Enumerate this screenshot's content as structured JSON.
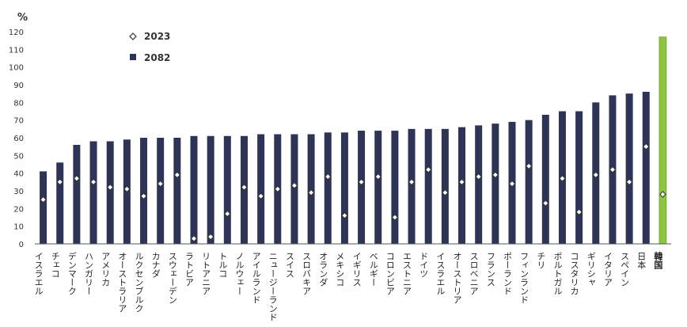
{
  "chart_data": {
    "type": "bar",
    "ylabel": "%",
    "ylim": [
      0,
      120
    ],
    "yticks": [
      0,
      10,
      20,
      30,
      40,
      50,
      60,
      70,
      80,
      90,
      100,
      110,
      120
    ],
    "ytick_labels": [
      "0",
      "10",
      "20",
      "30",
      "40",
      "50",
      "60",
      "70",
      "80",
      "90",
      "100",
      "110",
      "120"
    ],
    "grid": false,
    "legend_position": "top-left",
    "legend": [
      {
        "label": "2023",
        "marker": "diamond"
      },
      {
        "label": "2082",
        "marker": "square"
      }
    ],
    "categories": [
      "イスラエル",
      "チェコ",
      "デンマーク",
      "ハンガリー",
      "アメリカ",
      "オーストラリア",
      "ルクセンブルク",
      "カナダ",
      "スウェーデン",
      "ラトビア",
      "リトアニア",
      "トルコ",
      "ノルウェー",
      "アイルランド",
      "ニュージーランド",
      "スイス",
      "スロバキア",
      "オランダ",
      "メキシコ",
      "イギリス",
      "ベルギー",
      "コロンビア",
      "エストニア",
      "ドイツ",
      "イスラエル",
      "オーストリア",
      "スロベニア",
      "フランス",
      "ポーランド",
      "フィンランド",
      "チリ",
      "ポルトガル",
      "コスタリカ",
      "ギリシャ",
      "イタリア",
      "スペイン",
      "日本",
      "韓国"
    ],
    "series": [
      {
        "name": "2082",
        "values": [
          41,
          46,
          56,
          58,
          58,
          59,
          60,
          60,
          60,
          61,
          61,
          61,
          61,
          62,
          62,
          62,
          62,
          63,
          63,
          64,
          64,
          64,
          65,
          65,
          65,
          66,
          67,
          68,
          69,
          70,
          73,
          75,
          75,
          80,
          84,
          85,
          86,
          117
        ]
      },
      {
        "name": "2023",
        "values": [
          25,
          35,
          37,
          35,
          32,
          31,
          27,
          34,
          39,
          3,
          4,
          17,
          32,
          27,
          31,
          33,
          29,
          38,
          16,
          35,
          38,
          15,
          35,
          42,
          29,
          35,
          38,
          39,
          34,
          44,
          23,
          37,
          18,
          39,
          42,
          35,
          55,
          28
        ]
      }
    ],
    "highlight_category": "韓国",
    "colors": {
      "bar": "#2e3456",
      "highlight_bar": "#8cc63f",
      "marker_fill": "#ffffff",
      "marker_stroke": "#333333",
      "axis": "#555555"
    }
  }
}
